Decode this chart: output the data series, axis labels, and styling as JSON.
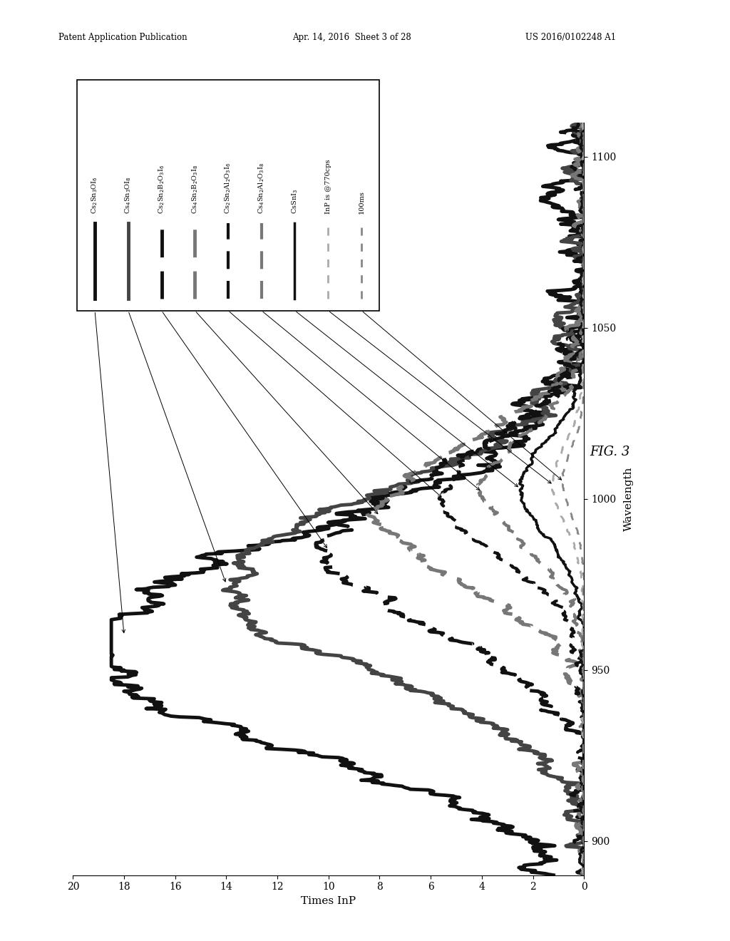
{
  "title": "FIG. 3",
  "xlabel_rotated": "Wavelength",
  "ylabel_rotated": "Times InP",
  "xlim_plot": [
    20,
    0
  ],
  "ylim_plot": [
    890,
    1110
  ],
  "xticks": [
    0,
    2,
    4,
    6,
    8,
    10,
    12,
    14,
    16,
    18,
    20
  ],
  "yticks": [
    900,
    950,
    1000,
    1050,
    1100
  ],
  "background_color": "#ffffff",
  "header_left": "Patent Application Publication",
  "header_mid": "Apr. 14, 2016  Sheet 3 of 28",
  "header_right": "US 2016/0102248 A1",
  "fig3_label": "FIG. 3",
  "legend_labels": [
    "Cs$_2$Sn$_3$OI$_6$",
    "Cs$_4$Sn$_3$OI$_8$",
    "Cs$_2$Sn$_2$B$_2$O$_3$I$_6$",
    "Cs$_4$Sn$_2$B$_2$O$_3$I$_8$",
    "Cs$_2$Sn$_2$Al$_2$O$_3$I$_6$",
    "Cs$_4$Sn$_2$Al$_2$O$_3$I$_8$",
    "CsSnI$_3$",
    "InP is @770cps",
    "100ms"
  ],
  "curve_colors": [
    "#111111",
    "#444444",
    "#111111",
    "#777777",
    "#111111",
    "#777777",
    "#111111",
    "#aaaaaa",
    "#888888"
  ],
  "curve_linestyles": [
    "solid",
    "solid",
    "dashed",
    "dashed",
    "dashed",
    "dashed",
    "solid",
    "dashed",
    "dashed"
  ],
  "curve_linewidths": [
    3.5,
    3.5,
    3.5,
    3.5,
    3.0,
    3.0,
    2.5,
    2.0,
    2.0
  ],
  "curve_dashes": [
    null,
    null,
    [
      8,
      4
    ],
    [
      8,
      4
    ],
    [
      6,
      4
    ],
    [
      6,
      4
    ],
    null,
    [
      4,
      4
    ],
    [
      4,
      4
    ]
  ],
  "curve_peaks_wl": [
    960,
    975,
    985,
    995,
    1000,
    1002,
    1003,
    1004,
    1005
  ],
  "curve_widths": [
    30,
    25,
    22,
    20,
    18,
    16,
    14,
    12,
    10
  ],
  "curve_amps": [
    18.0,
    14.0,
    10.0,
    8.0,
    5.5,
    4.0,
    2.5,
    1.2,
    0.8
  ]
}
